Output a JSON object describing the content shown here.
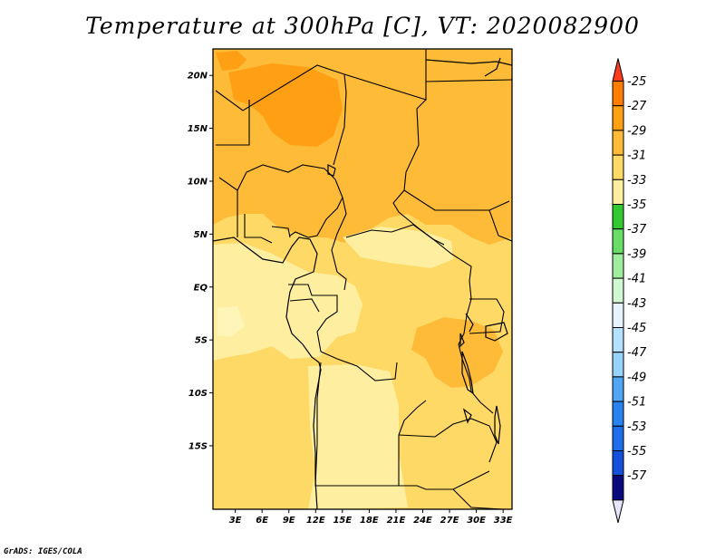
{
  "title": "Temperature at 300hPa [C], VT: 2020082900",
  "credit": "GrADS: IGES/COLA",
  "map": {
    "lon_labels": [
      "3E",
      "6E",
      "9E",
      "12E",
      "15E",
      "18E",
      "21E",
      "24E",
      "27E",
      "30E",
      "33E"
    ],
    "lat_labels": [
      "20N",
      "15N",
      "10N",
      "5N",
      "EQ",
      "5S",
      "10S",
      "15S"
    ]
  },
  "colorbar": {
    "labels": [
      "-25",
      "-27",
      "-29",
      "-31",
      "-33",
      "-35",
      "-37",
      "-39",
      "-41",
      "-43",
      "-45",
      "-47",
      "-49",
      "-51",
      "-53",
      "-55",
      "-57"
    ],
    "colors": [
      "#ff3c1e",
      "#ff7d00",
      "#ff9f14",
      "#fdbb37",
      "#fed966",
      "#feefa0",
      "#32c832",
      "#68dd68",
      "#a0eda0",
      "#d2f8d2",
      "#e6f4ff",
      "#b4e1ff",
      "#96d2fa",
      "#50a5f5",
      "#2882f0",
      "#1e6eeb",
      "#1450dc",
      "#0a0a7e",
      "#e6e6ff"
    ],
    "level_colors": {
      "c29_27": "#fdbb37",
      "c31_29": "#fed966",
      "c33_31": "#feefa0",
      "c27_25": "#ff9f14"
    }
  }
}
